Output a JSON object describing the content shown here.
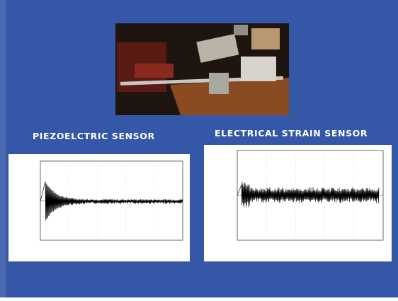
{
  "slide": {
    "headings": [
      "PIEZOELCTRIC SENSOR",
      "ELECTRICAL STRAIN SENSOR"
    ]
  }
}
